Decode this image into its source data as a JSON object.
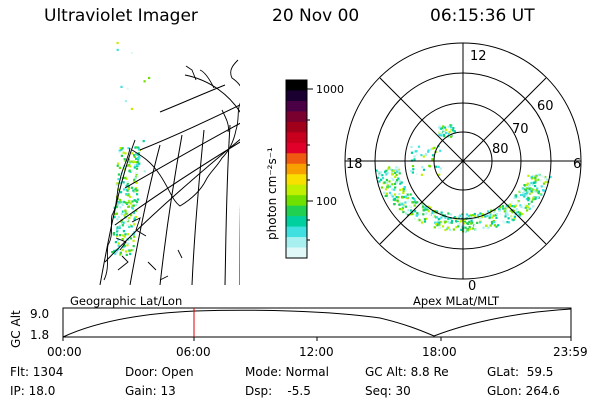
{
  "header": {
    "title": "Ultraviolet Imager",
    "date": "20 Nov 00",
    "time": "06:15:36 UT"
  },
  "colorbar": {
    "unit_label": "photon cm⁻²s⁻¹",
    "ticks": [
      "1000",
      "100"
    ],
    "colors": [
      "#000000",
      "#1a0030",
      "#4b0045",
      "#7a0030",
      "#a0001a",
      "#c8001e",
      "#e0002a",
      "#f05a10",
      "#f8a000",
      "#f8e000",
      "#c0f000",
      "#70e000",
      "#20d050",
      "#00d0a0",
      "#40e0e0",
      "#a8f0f0",
      "#e0f8f8"
    ]
  },
  "polar": {
    "noon_label": "12",
    "midnight_label": "0",
    "dusk_label": "18",
    "dawn_label": "6",
    "lat_labels": [
      "60",
      "70",
      "80"
    ]
  },
  "panel_labels": {
    "left": "Geographic Lat/Lon",
    "right": "Apex MLat/MLT"
  },
  "timeline": {
    "ylabel": "GC Alt",
    "ymax": "9.0",
    "ymin": "1.8",
    "ticks": [
      "00:00",
      "06:00",
      "12:00",
      "18:00",
      "23:59"
    ],
    "current_marker": "06:15"
  },
  "info": {
    "flt": "Flt: 1304",
    "ip": "IP: 18.0",
    "door": "Door: Open",
    "gain": "Gain: 13",
    "mode": "Mode: Normal",
    "dsp": "Dsp:    -5.5",
    "gcalt": "GC Alt: 8.8 Re",
    "seq": "Seq: 30",
    "glat": "GLat:  59.5",
    "glon": "GLon: 264.6"
  }
}
